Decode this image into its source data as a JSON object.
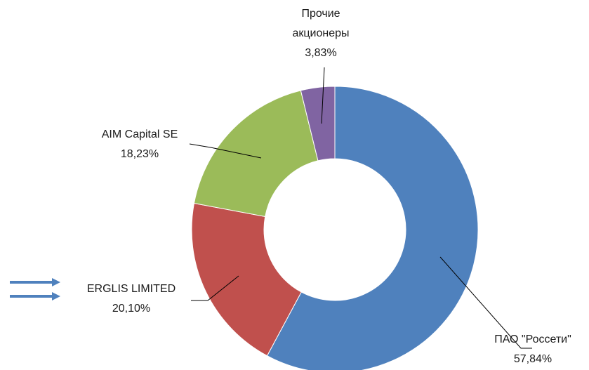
{
  "chart_data": {
    "type": "donut",
    "categories": [
      "ПАО \"Россети\"",
      "ERGLIS LIMITED",
      "AIM Capital SE",
      "Прочие акционеры"
    ],
    "values": [
      57.84,
      20.1,
      18.23,
      3.83
    ],
    "value_labels": [
      "57,84%",
      "20,10%",
      "18,23%",
      "3,83%"
    ],
    "colors": [
      "#4f81bd",
      "#c0504d",
      "#9bbb59",
      "#8064a2"
    ]
  }
}
